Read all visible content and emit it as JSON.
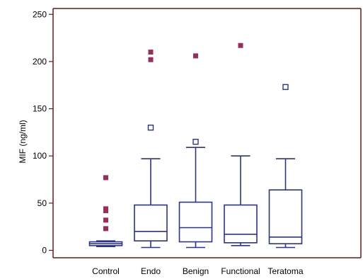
{
  "chart_data": {
    "type": "box",
    "title": "",
    "xlabel": "",
    "ylabel": "MIF (ng/ml)",
    "ylim": [
      -7,
      254
    ],
    "yticks": [
      0,
      50,
      100,
      150,
      200,
      250
    ],
    "ytick_labels": [
      "0",
      "50",
      "100",
      "150",
      "200",
      "250"
    ],
    "categories": [
      "Control",
      "Endo",
      "Benign",
      "Functional",
      "Teratoma"
    ],
    "boxes": [
      {
        "whisker_low": 4,
        "q1": 5,
        "median": 7,
        "q3": 9,
        "whisker_high": 10,
        "far_outliers": [
          77,
          44,
          42,
          32,
          23
        ],
        "outliers": []
      },
      {
        "whisker_low": 3,
        "q1": 10,
        "median": 20,
        "q3": 48,
        "whisker_high": 97,
        "far_outliers": [
          210,
          202
        ],
        "outliers": [
          130
        ]
      },
      {
        "whisker_low": 3,
        "q1": 9,
        "median": 24,
        "q3": 51,
        "whisker_high": 109,
        "far_outliers": [
          206
        ],
        "outliers": [
          115
        ]
      },
      {
        "whisker_low": 5,
        "q1": 8,
        "median": 17,
        "q3": 48,
        "whisker_high": 100,
        "far_outliers": [
          217
        ],
        "outliers": []
      },
      {
        "whisker_low": 3,
        "q1": 7,
        "median": 14,
        "q3": 64,
        "whisker_high": 97,
        "far_outliers": [],
        "outliers": [
          173
        ]
      }
    ],
    "grid": false,
    "legend": "none",
    "colors": {
      "box": "#2a3390",
      "far_outlier": "#9b2c5e",
      "frame": "#6b1a1a",
      "text": "#000000"
    }
  }
}
